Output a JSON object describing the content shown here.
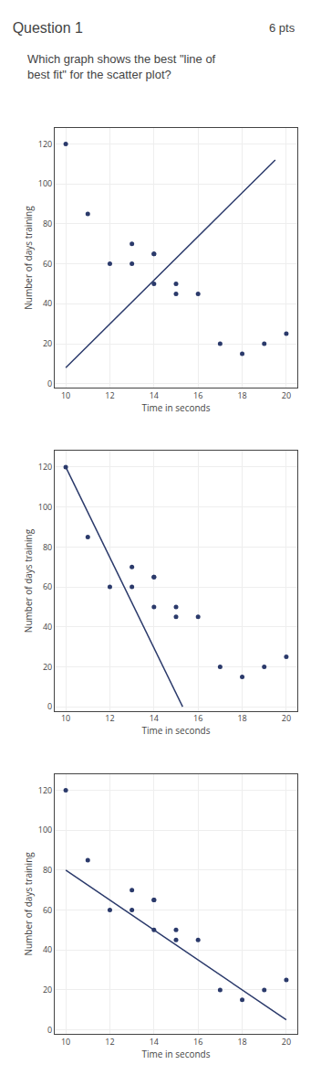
{
  "chart_data": [
    {
      "type": "scatter",
      "title": "Question 1",
      "subtitle": "Which graph shows the best \"line of\nbest fit\" for the scatter plot?",
      "annotations": [
        "6 pts"
      ],
      "xlabel": "Time in seconds",
      "ylabel": "Number of days training",
      "xlim": [
        9.5,
        20.5
      ],
      "ylim": [
        -2,
        128
      ],
      "xticks": [
        10,
        12,
        14,
        16,
        18,
        20
      ],
      "yticks": [
        0,
        20,
        40,
        60,
        80,
        100,
        120
      ],
      "grid": true,
      "series": [
        {
          "type": "scatter",
          "color": "#2b3a6b",
          "x": [
            10,
            11,
            12,
            13,
            13,
            14,
            14,
            14,
            15,
            15,
            16,
            17,
            18,
            19,
            20
          ],
          "values": [
            120,
            85,
            60,
            70,
            60,
            65,
            65,
            50,
            45,
            50,
            45,
            20,
            15,
            20,
            25
          ]
        },
        {
          "type": "line",
          "color": "#2b3a6b",
          "x": [
            10,
            19.5
          ],
          "values": [
            8,
            112
          ]
        }
      ]
    },
    {
      "type": "scatter",
      "xlabel": "Time in seconds",
      "ylabel": "Number of days training",
      "xlim": [
        9.5,
        20.5
      ],
      "ylim": [
        -2,
        128
      ],
      "xticks": [
        10,
        12,
        14,
        16,
        18,
        20
      ],
      "yticks": [
        0,
        20,
        40,
        60,
        80,
        100,
        120
      ],
      "grid": true,
      "series": [
        {
          "type": "scatter",
          "color": "#2b3a6b",
          "x": [
            10,
            11,
            12,
            13,
            13,
            14,
            14,
            14,
            15,
            15,
            16,
            17,
            18,
            19,
            20
          ],
          "values": [
            120,
            85,
            60,
            70,
            60,
            65,
            65,
            50,
            45,
            50,
            45,
            20,
            15,
            20,
            25
          ]
        },
        {
          "type": "line",
          "color": "#2b3a6b",
          "x": [
            10,
            15.3
          ],
          "values": [
            120,
            0
          ]
        }
      ]
    },
    {
      "type": "scatter",
      "xlabel": "Time in seconds",
      "ylabel": "Number of days training",
      "xlim": [
        9.5,
        20.5
      ],
      "ylim": [
        -2,
        128
      ],
      "xticks": [
        10,
        12,
        14,
        16,
        18,
        20
      ],
      "yticks": [
        0,
        20,
        40,
        60,
        80,
        100,
        120
      ],
      "grid": true,
      "series": [
        {
          "type": "scatter",
          "color": "#2b3a6b",
          "x": [
            10,
            11,
            12,
            13,
            13,
            14,
            14,
            14,
            15,
            15,
            16,
            17,
            18,
            19,
            20
          ],
          "values": [
            120,
            85,
            60,
            70,
            60,
            65,
            65,
            50,
            45,
            50,
            45,
            20,
            15,
            20,
            25
          ]
        },
        {
          "type": "line",
          "color": "#2b3a6b",
          "x": [
            10,
            20
          ],
          "values": [
            80,
            5
          ]
        }
      ]
    }
  ]
}
